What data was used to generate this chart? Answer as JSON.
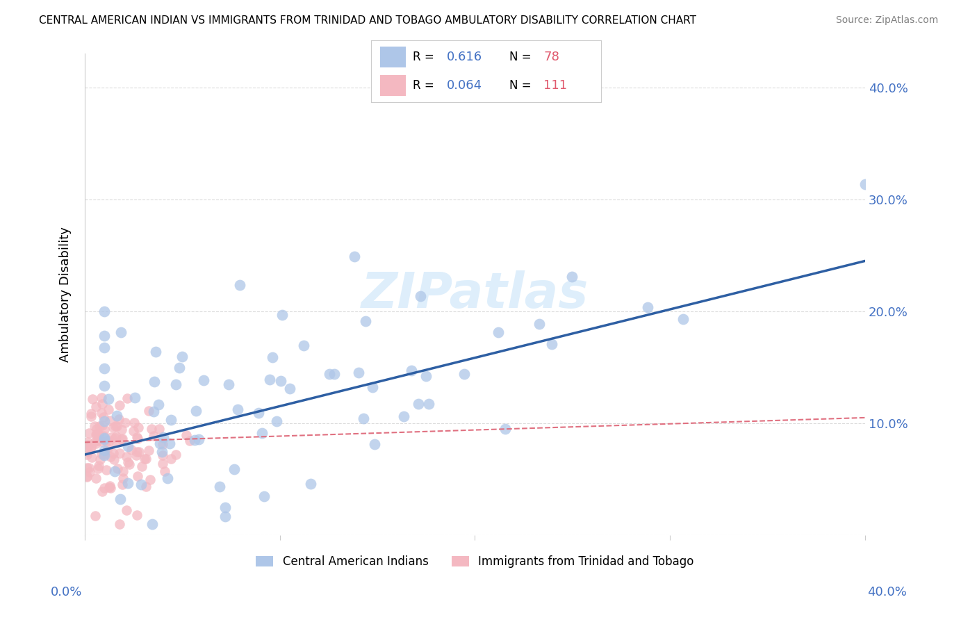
{
  "title": "CENTRAL AMERICAN INDIAN VS IMMIGRANTS FROM TRINIDAD AND TOBAGO AMBULATORY DISABILITY CORRELATION CHART",
  "source": "Source: ZipAtlas.com",
  "ylabel": "Ambulatory Disability",
  "ytick_vals": [
    0.0,
    0.1,
    0.2,
    0.3,
    0.4
  ],
  "ytick_labels": [
    "",
    "10.0%",
    "20.0%",
    "30.0%",
    "40.0%"
  ],
  "xlim": [
    0.0,
    0.4
  ],
  "ylim": [
    0.0,
    0.43
  ],
  "scatter_blue_color": "#aec6e8",
  "scatter_pink_color": "#f4b8c1",
  "line_blue_color": "#2e5fa3",
  "line_pink_color": "#e07080",
  "watermark": "ZIPatlas",
  "background_color": "#ffffff",
  "grid_color": "#cccccc",
  "label_color": "#4472c4",
  "N_color": "#e05a6e",
  "blue_line_y_start": 0.072,
  "blue_line_y_end": 0.245,
  "pink_line_y_start": 0.083,
  "pink_line_y_end": 0.105,
  "legend_label_blue": "Central American Indians",
  "legend_label_pink": "Immigrants from Trinidad and Tobago",
  "R_blue": "0.616",
  "N_blue": "78",
  "R_pink": "0.064",
  "N_pink": "111"
}
